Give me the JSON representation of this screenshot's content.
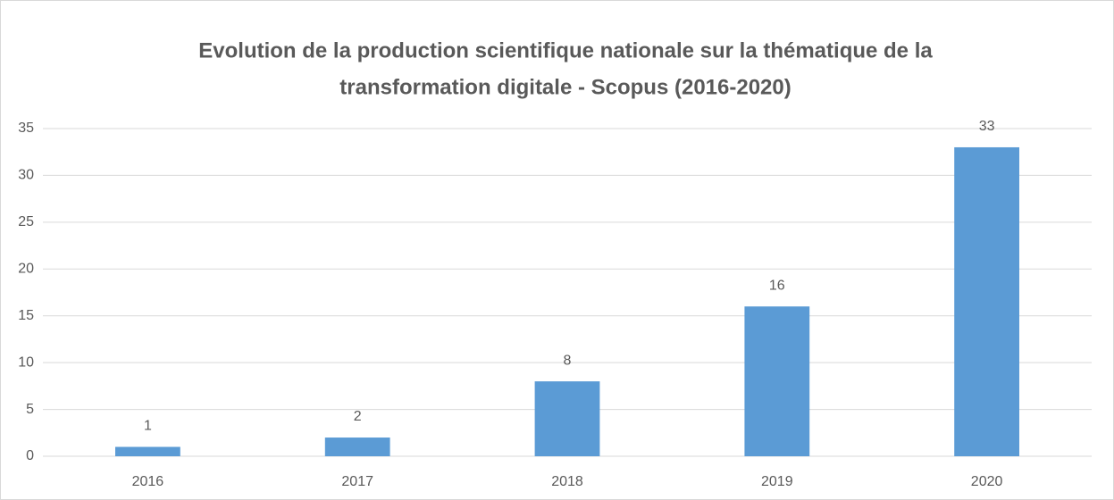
{
  "chart_data": {
    "type": "bar",
    "title": [
      "Evolution de la production scientifique nationale sur la thématique de la",
      "transformation digitale - Scopus (2016-2020)"
    ],
    "categories": [
      "2016",
      "2017",
      "2018",
      "2019",
      "2020"
    ],
    "values": [
      1,
      2,
      8,
      16,
      33
    ],
    "color": "#5b9bd5",
    "ylim": [
      0,
      35
    ],
    "yticks": [
      0,
      5,
      10,
      15,
      20,
      25,
      30,
      35
    ],
    "grid": true,
    "data_labels": true
  }
}
